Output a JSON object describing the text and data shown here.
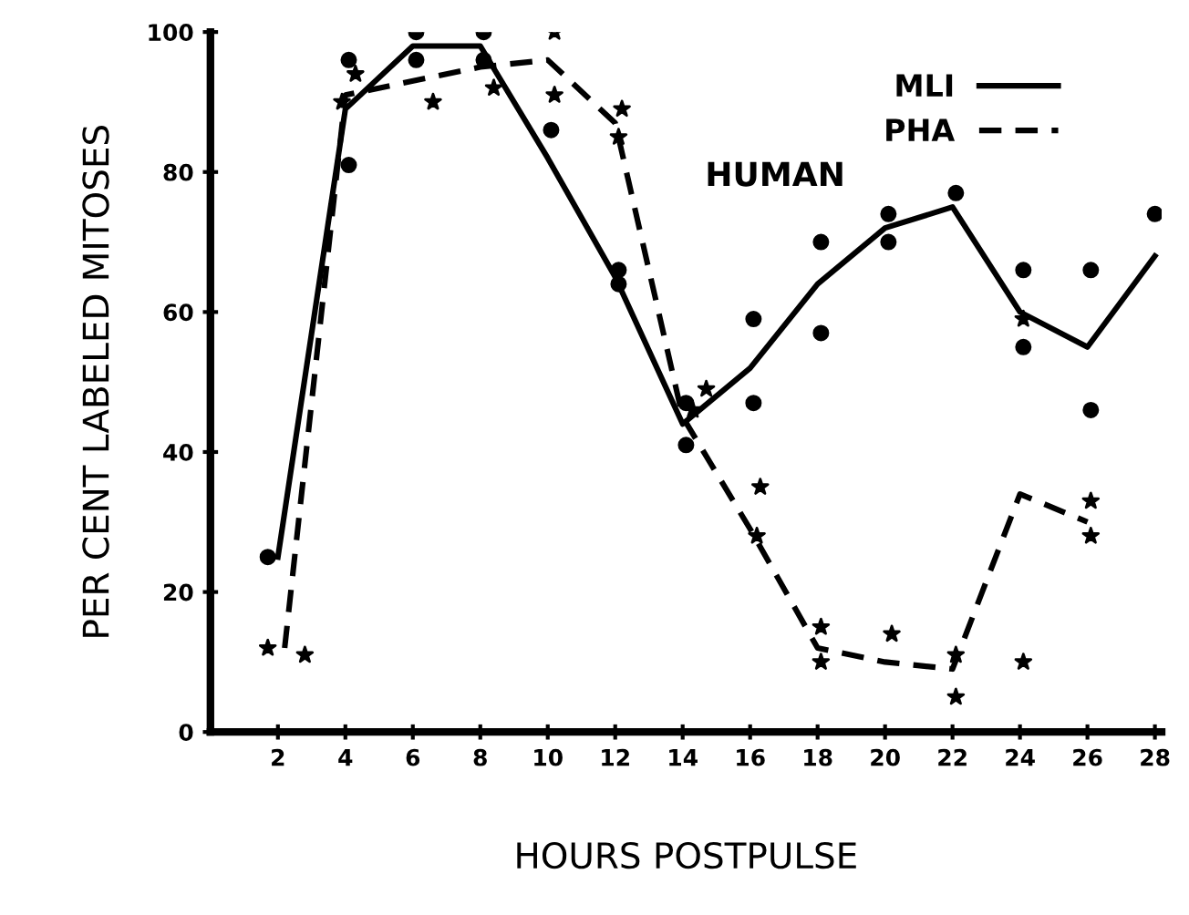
{
  "chart_data": {
    "type": "line",
    "xlabel": "HOURS POSTPULSE",
    "ylabel": "PER CENT LABELED MITOSES",
    "annotations": [
      "HUMAN"
    ],
    "xlim": [
      0,
      28.2
    ],
    "xticks": [
      2,
      4,
      6,
      8,
      10,
      12,
      14,
      16,
      18,
      20,
      22,
      24,
      26,
      28
    ],
    "ylim": [
      0,
      100
    ],
    "yticks": [
      0,
      20,
      40,
      60,
      80,
      100
    ],
    "legend": "top right",
    "grid": false,
    "series": [
      {
        "name": "MLI",
        "line_style": "solid",
        "color": "#000000",
        "x": [
          2,
          4,
          6,
          8,
          10,
          12,
          14,
          16,
          18,
          20,
          22,
          24,
          26,
          28
        ],
        "values": [
          25,
          89,
          98,
          98,
          82,
          65,
          44,
          52,
          64,
          72,
          75,
          60,
          55,
          68
        ]
      },
      {
        "name": "PHA",
        "line_style": "dashed",
        "color": "#000000",
        "x": [
          2.2,
          4,
          8,
          10,
          12,
          14,
          16,
          18,
          20,
          22,
          24,
          26
        ],
        "values": [
          12,
          91,
          95,
          96,
          87,
          45,
          29,
          12,
          10,
          9,
          34,
          30
        ]
      },
      {
        "type": "scatter",
        "marker": "circle",
        "color": "#000000",
        "x": [
          1.7,
          4.1,
          4.1,
          6.1,
          6.1,
          8.1,
          8.1,
          10.1,
          12.1,
          12.1,
          14.1,
          14.1,
          16.1,
          16.1,
          18.1,
          18.1,
          20.1,
          20.1,
          22.1,
          24.1,
          24.1,
          26.1,
          26.1,
          28
        ],
        "values": [
          25,
          96,
          81,
          100,
          96,
          100,
          96,
          86,
          66,
          64,
          41,
          47,
          59,
          47,
          70,
          57,
          74,
          70,
          77,
          66,
          55,
          66,
          46,
          74
        ]
      },
      {
        "type": "scatter",
        "marker": "star",
        "color": "#000000",
        "x": [
          1.7,
          2.8,
          4.3,
          3.9,
          6.6,
          8.4,
          10.2,
          10.2,
          12.2,
          12.1,
          14.7,
          14.3,
          16.3,
          16.2,
          18.1,
          18.1,
          20.2,
          22.1,
          22.1,
          24.1,
          24.1,
          26.1,
          26.1
        ],
        "values": [
          12,
          11,
          94,
          90,
          90,
          92,
          100,
          91,
          89,
          85,
          49,
          46,
          35,
          28,
          15,
          10,
          14,
          11,
          5,
          10,
          59,
          33,
          28
        ]
      }
    ]
  }
}
